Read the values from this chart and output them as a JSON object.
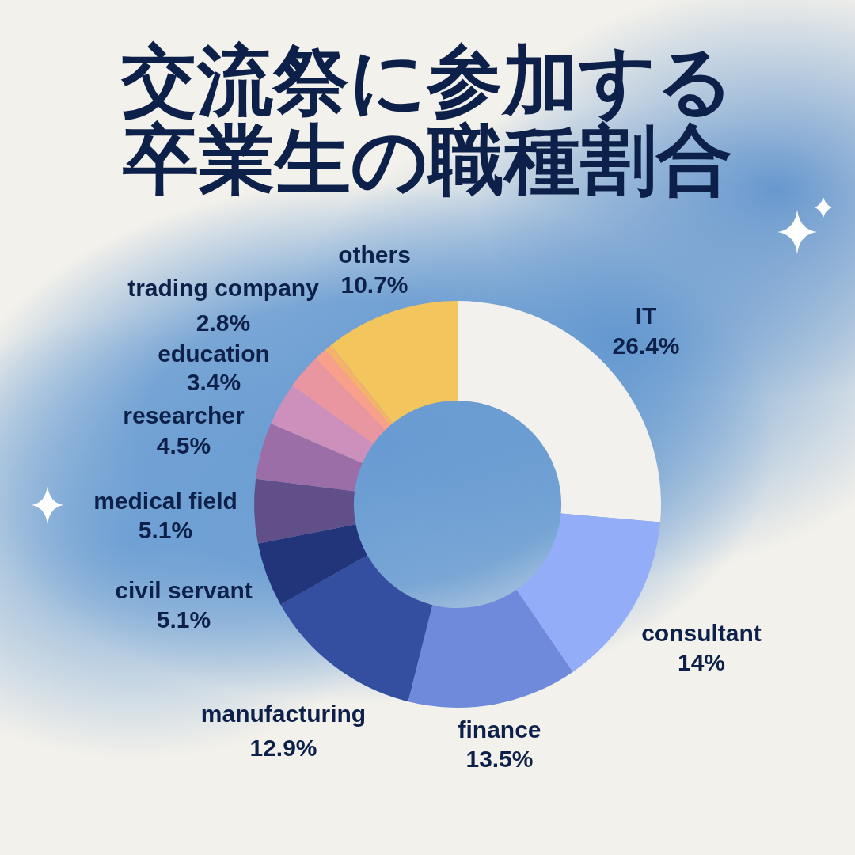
{
  "chart_data": {
    "type": "donut",
    "title": "交流祭に参加する卒業生の職種割合",
    "categories": [
      "IT",
      "consultant",
      "finance",
      "manufacturing",
      "civil servant",
      "medical field",
      "researcher",
      "education",
      "trading company",
      null,
      null,
      "others"
    ],
    "values": [
      26.4,
      14,
      13.5,
      12.9,
      5.1,
      5.1,
      4.5,
      3.4,
      2.8,
      1.0,
      0.6,
      10.7
    ],
    "value_labels": [
      "26.4%",
      "14%",
      "13.5%",
      "12.9%",
      "5.1%",
      "5.1%",
      "4.5%",
      "3.4%",
      "2.8%",
      null,
      null,
      "10.7%"
    ],
    "colors": [
      "#f2f1ed",
      "#93adf8",
      "#6f89db",
      "#344ea0",
      "#22357a",
      "#614f8a",
      "#9b6ea7",
      "#cd8fbc",
      "#ea96a1",
      "#f9a08c",
      "#f6b26c",
      "#f2c65d"
    ]
  }
}
